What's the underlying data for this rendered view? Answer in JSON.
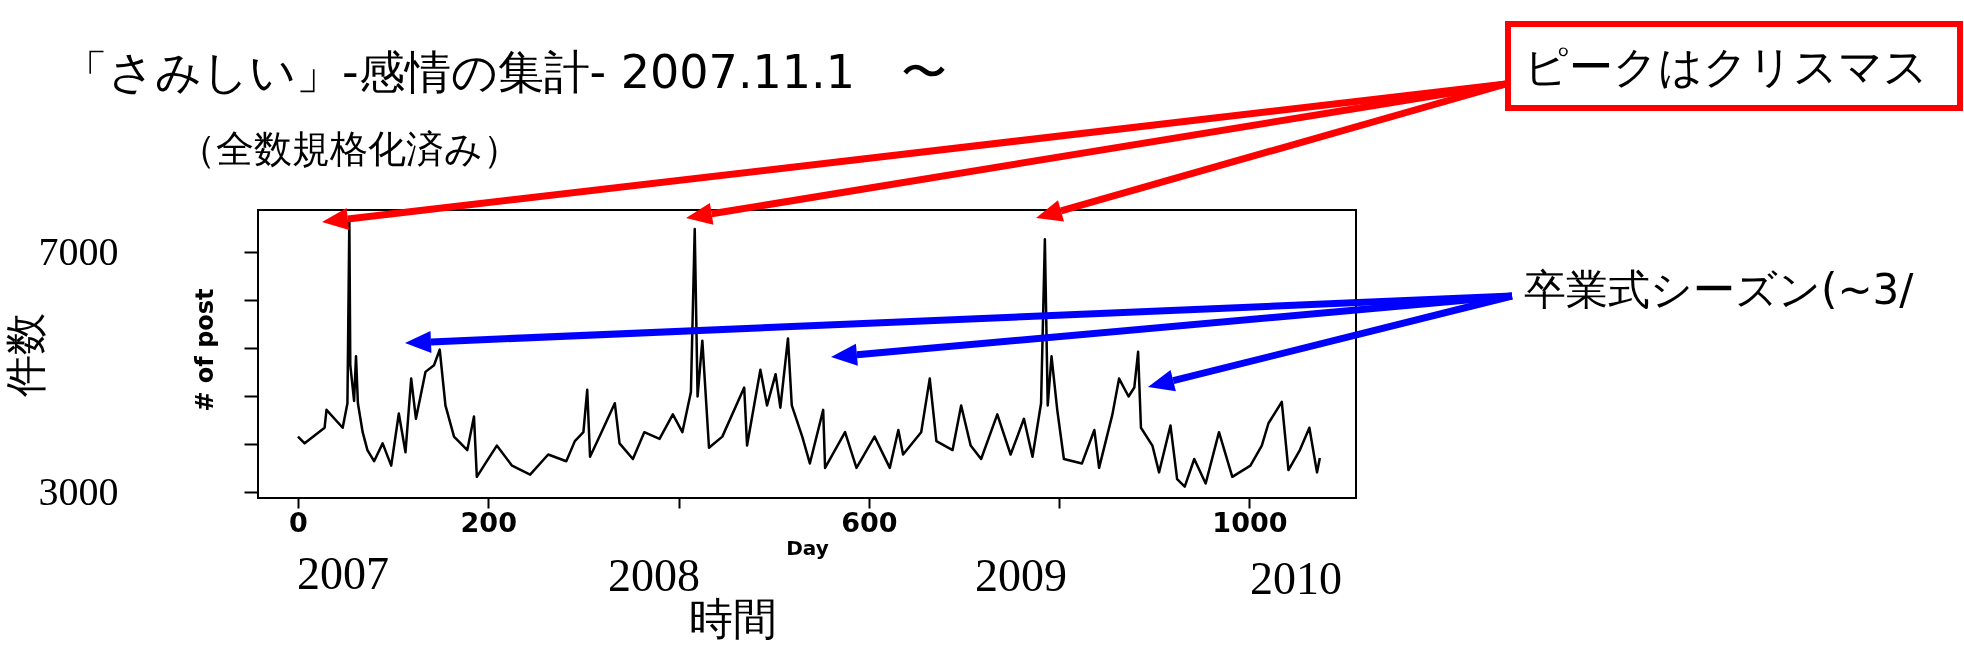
{
  "chart_data": {
    "type": "line",
    "title": "「さみしい」-感情の集計-  2007.11.1　〜",
    "subtitle": "（全数規格化済み）",
    "xlabel": "Day",
    "ylabel": "件数",
    "annotations": [
      "ピークはクリスマス",
      "卒業式シーズン(~3/",
      "2007",
      "2008",
      "2009",
      "2010",
      "時間",
      "# of post"
    ],
    "x": [
      0,
      7,
      28,
      30,
      47,
      52,
      54,
      55,
      59,
      61,
      63,
      68,
      73,
      80,
      89,
      98,
      106,
      113,
      119,
      124,
      134,
      143,
      149,
      155,
      164,
      178,
      185,
      188,
      197,
      209,
      225,
      244,
      263,
      282,
      291,
      300,
      304,
      307,
      319,
      333,
      338,
      352,
      364,
      380,
      394,
      404,
      413,
      417,
      420,
      425,
      432,
      446,
      469,
      472,
      486,
      493,
      502,
      507,
      515,
      519,
      530,
      538,
      552,
      554,
      575,
      587,
      606,
      622,
      631,
      636,
      655,
      664,
      671,
      688,
      697,
      707,
      718,
      735,
      749,
      763,
      772,
      781,
      785,
      788,
      792,
      798,
      805,
      824,
      837,
      842,
      856,
      863,
      873,
      879,
      883,
      886,
      898,
      905,
      917,
      924,
      932,
      942,
      954,
      968,
      982,
      1001,
      1013,
      1020,
      1034,
      1041,
      1053,
      1063,
      1071,
      1074
    ],
    "series": [
      {
        "color": "#000000",
        "values": [
          3923,
          3811,
          4071,
          4369,
          4071,
          4480,
          7531,
          5113,
          4518,
          5262,
          4480,
          3997,
          3699,
          3513,
          3811,
          3439,
          4309,
          3662,
          4890,
          4220,
          5002,
          5113,
          5373,
          4443,
          3923,
          3699,
          4257,
          3253,
          3476,
          3774,
          3439,
          3290,
          3625,
          3513,
          3848,
          3997,
          4704,
          3588,
          3997,
          4480,
          3811,
          3550,
          3997,
          3885,
          4294,
          3997,
          4666,
          7382,
          4592,
          5522,
          3737,
          3923,
          4741,
          3774,
          5039,
          4443,
          4964,
          4406,
          5560,
          4443,
          3923,
          3476,
          4369,
          3402,
          3997,
          3402,
          3923,
          3402,
          4034,
          3625,
          3997,
          4890,
          3848,
          3699,
          4443,
          3774,
          3550,
          4294,
          3625,
          4220,
          3588,
          4480,
          7211,
          4443,
          5262,
          4369,
          3550,
          3476,
          4034,
          3402,
          4294,
          4890,
          4592,
          4741,
          5336,
          4071,
          3774,
          3327,
          4109,
          3216,
          3089,
          3550,
          3141,
          3997,
          3253,
          3439,
          3774,
          4146,
          4503,
          3365,
          3699,
          4071,
          3327,
          3565
        ]
      }
    ],
    "xlim": [
      -42,
      1112
    ],
    "xticks": [
      0,
      200,
      {
        "value": 400,
        "label": null
      },
      600,
      {
        "value": 800,
        "label": null
      },
      1000
    ],
    "ylim": [
      2900,
      7700
    ],
    "yticks": [
      3000,
      {
        "value": 3800,
        "label": null
      },
      {
        "value": 4600,
        "label": null
      },
      {
        "value": 5400,
        "label": null
      },
      {
        "value": 6200,
        "label": null
      },
      7000
    ],
    "grid": false
  }
}
